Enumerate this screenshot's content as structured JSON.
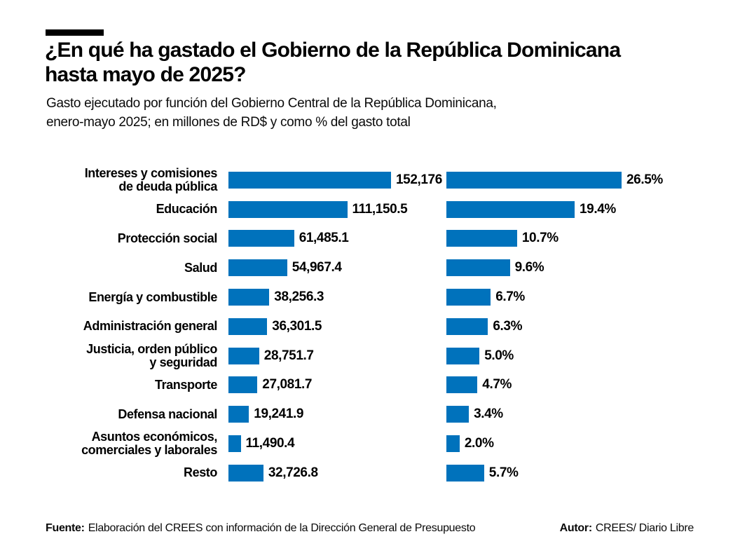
{
  "header": {
    "title_line1": "¿En qué ha gastado el Gobierno de la República Dominicana",
    "title_line2": "hasta mayo de 2025?",
    "subtitle_line1": "Gasto ejecutado por función del Gobierno Central de la República Dominicana,",
    "subtitle_line2": "enero-mayo 2025; en millones de RD$ y como % del gasto total"
  },
  "colors": {
    "bar": "#0072bc",
    "accent": "#000000",
    "text": "#000000"
  },
  "chart_data": {
    "type": "bar",
    "orientation": "horizontal",
    "title": "¿En qué ha gastado el Gobierno de la República Dominicana hasta mayo de 2025?",
    "units": [
      "millones de RD$",
      "% del gasto total"
    ],
    "grid": false,
    "legend": false,
    "bar_color": "#0072bc",
    "categories": [
      "Intereses y comisiones de deuda pública",
      "Educación",
      "Protección social",
      "Salud",
      "Energía y combustible",
      "Administración general",
      "Justicia, orden público y seguridad",
      "Transporte",
      "Defensa nacional",
      "Asuntos económicos, comerciales y laborales",
      "Resto"
    ],
    "label_lines": [
      [
        "Intereses y comisiones",
        "de deuda pública"
      ],
      [
        "Educación"
      ],
      [
        "Protección social"
      ],
      [
        "Salud"
      ],
      [
        "Energía y combustible"
      ],
      [
        "Administración general"
      ],
      [
        "Justicia, orden público",
        "y seguridad"
      ],
      [
        "Transporte"
      ],
      [
        "Defensa nacional"
      ],
      [
        "Asuntos económicos,",
        "comerciales y laborales"
      ],
      [
        "Resto"
      ]
    ],
    "series": [
      {
        "name": "Gasto ejecutado (millones de RD$)",
        "values": [
          152176,
          111150.5,
          61485.1,
          54967.4,
          38256.3,
          36301.5,
          28751.7,
          27081.7,
          19241.9,
          11490.4,
          32726.8
        ],
        "labels": [
          "152,176",
          "111,150.5",
          "61,485.1",
          "54,967.4",
          "38,256.3",
          "36,301.5",
          "28,751.7",
          "27,081.7",
          "19,241.9",
          "11,490.4",
          "32,726.8"
        ]
      },
      {
        "name": "% del gasto total",
        "values": [
          26.5,
          19.4,
          10.7,
          9.6,
          6.7,
          6.3,
          5.0,
          4.7,
          3.4,
          2.0,
          5.7
        ],
        "labels": [
          "26.5%",
          "19.4%",
          "10.7%",
          "9.6%",
          "6.7%",
          "6.3%",
          "5.0%",
          "4.7%",
          "3.4%",
          "2.0%",
          "5.7%"
        ]
      }
    ]
  },
  "footer": {
    "source_label": "Fuente:",
    "source_text": "Elaboración del CREES con información de la Dirección General de Presupuesto",
    "author_label": "Autor:",
    "author_text": "CREES/ Diario Libre"
  }
}
